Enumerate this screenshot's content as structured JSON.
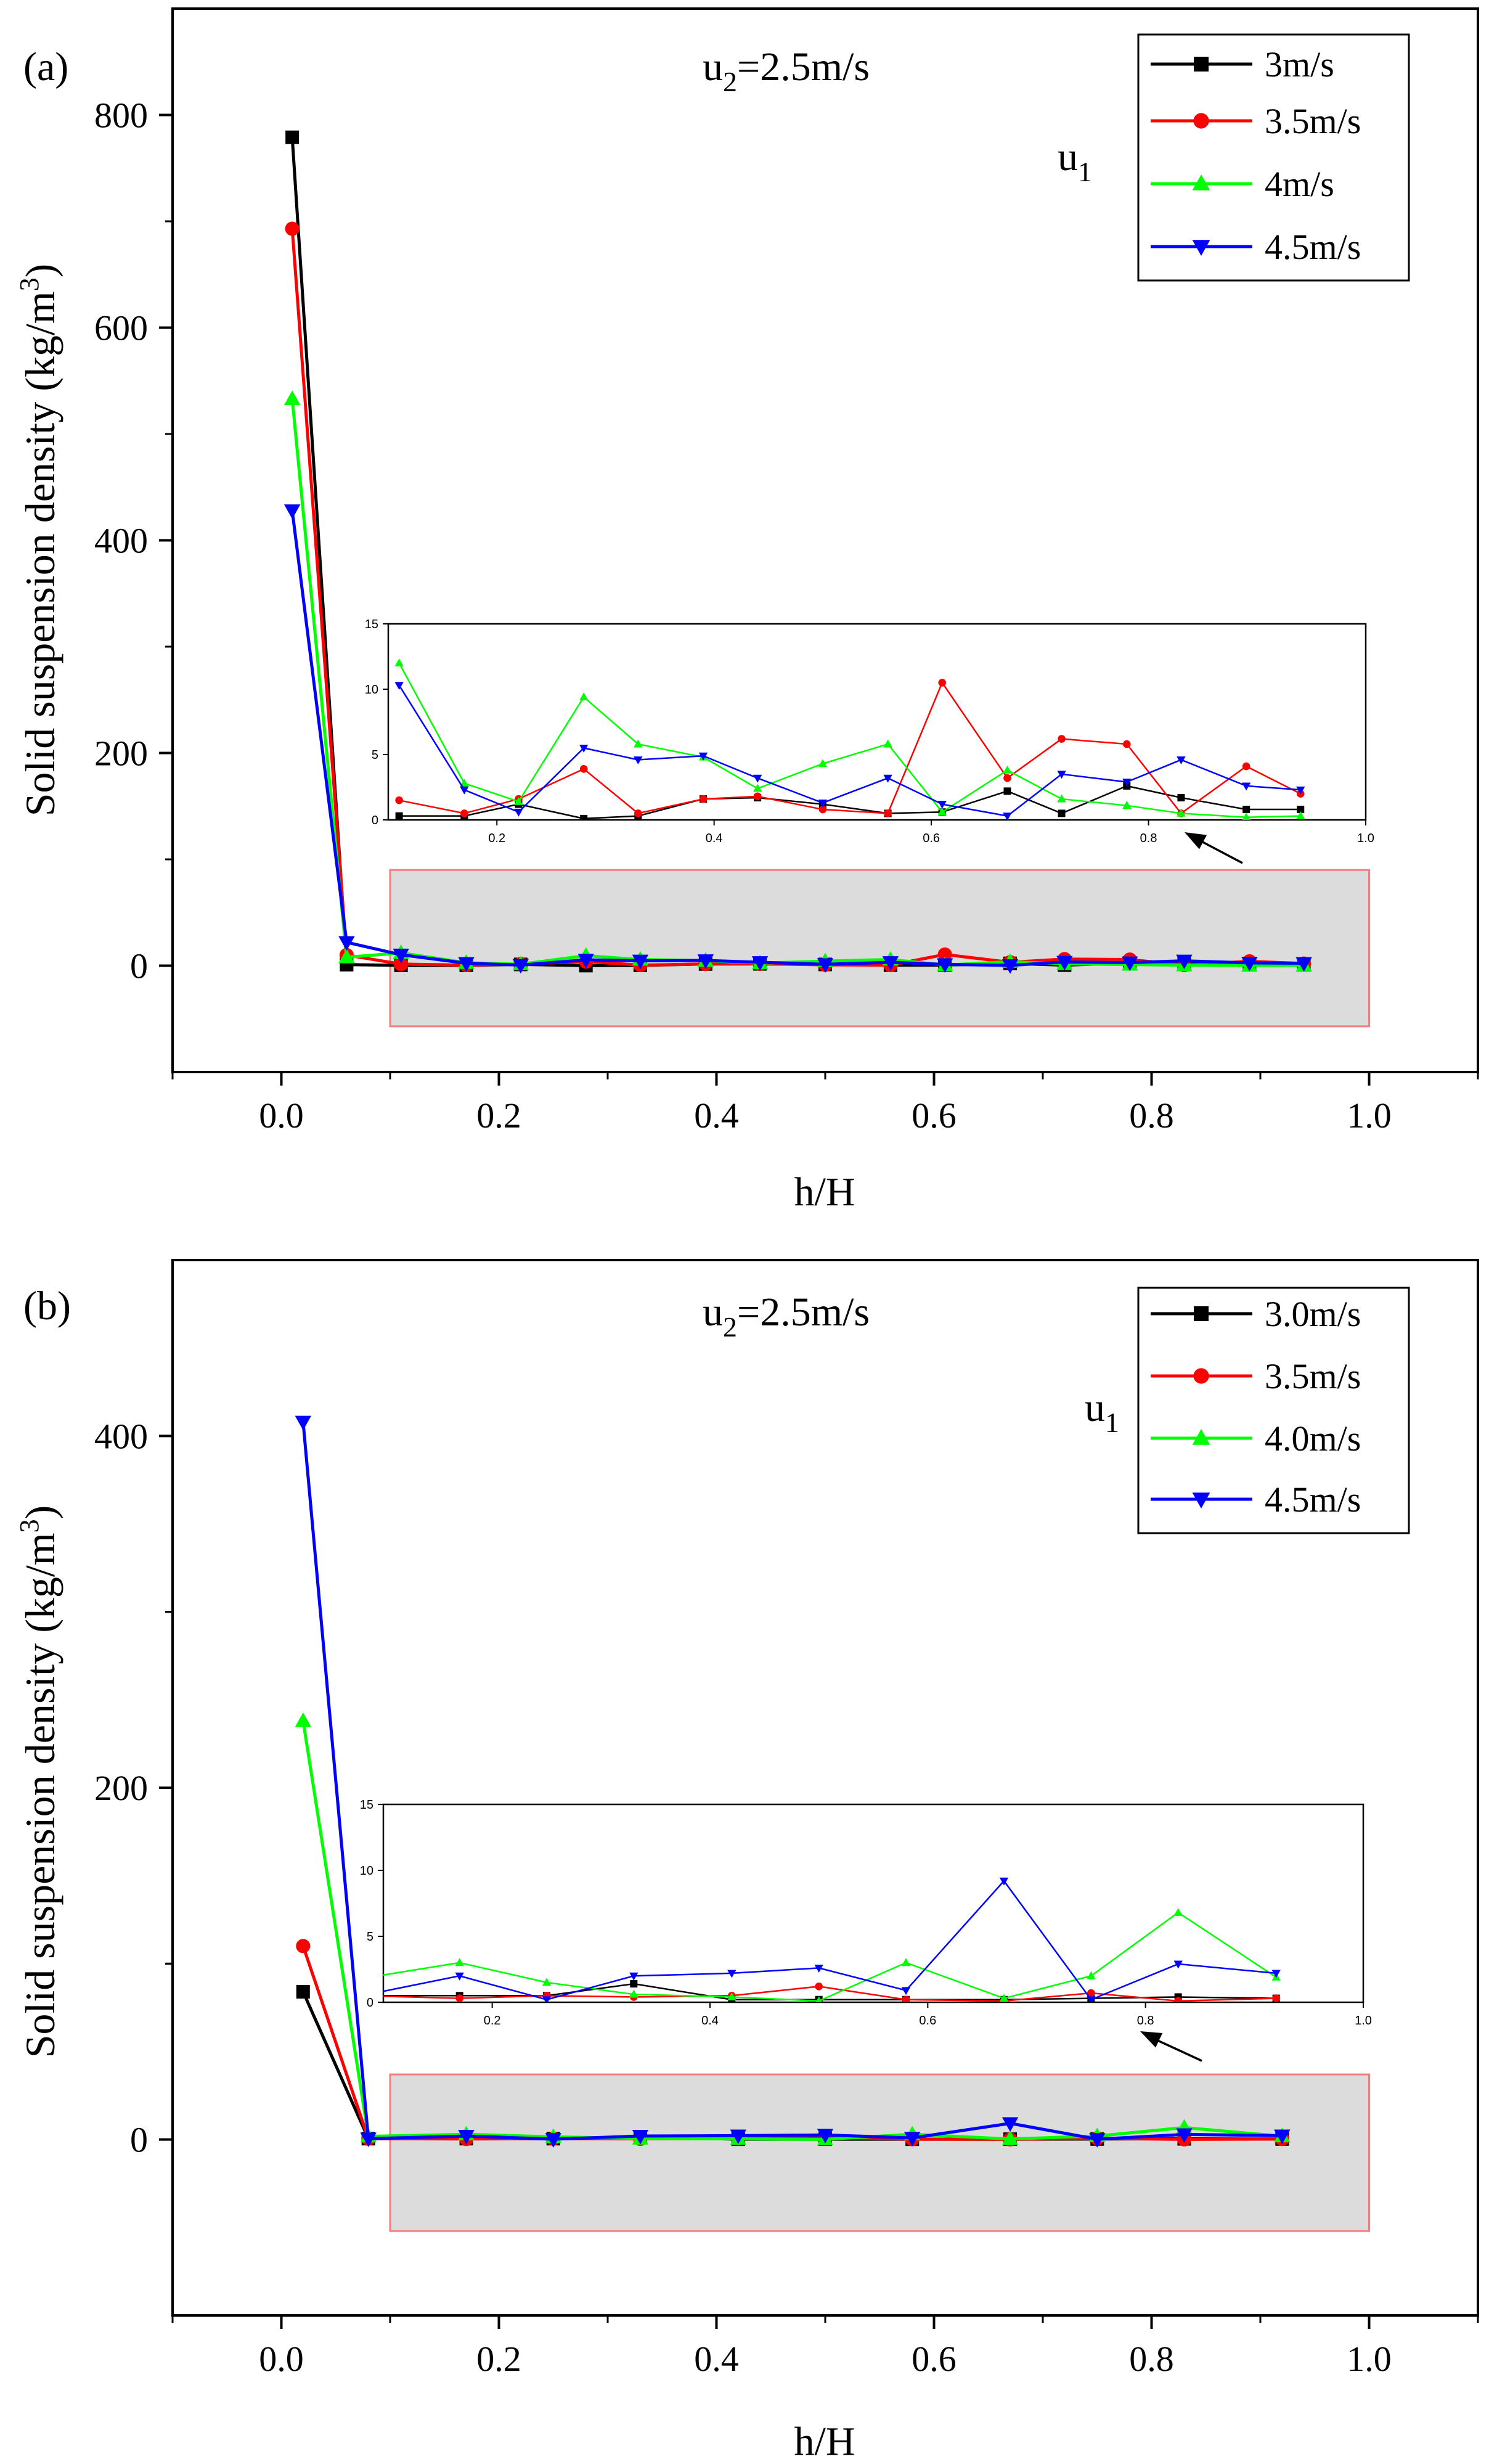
{
  "figure": "Solid suspension density versus h/H",
  "chart_data": [
    {
      "id": "a",
      "type": "line",
      "panel_label": "(a)",
      "annotation": "u",
      "annotation_sub": "2",
      "annotation_rest": "=2.5m/s",
      "legend_group_label": "u",
      "legend_group_sub": "1",
      "xlabel": "h/H",
      "ylabel_main": "Solid suspension density (kg/m",
      "ylabel_sup": "3",
      "ylabel_end": ")",
      "xlim": [
        -0.1,
        1.1
      ],
      "ylim": [
        -100,
        900
      ],
      "xticks": [
        0.0,
        0.2,
        0.4,
        0.6,
        0.8,
        1.0
      ],
      "xtick_labels": [
        "0.0",
        "0.2",
        "0.4",
        "0.6",
        "0.8",
        "1.0"
      ],
      "yticks": [
        0,
        200,
        400,
        600,
        800
      ],
      "ytick_labels": [
        "0",
        "200",
        "400",
        "600",
        "800"
      ],
      "highlight_region": {
        "x": [
          0.1,
          1.0
        ],
        "y": [
          -57,
          90
        ]
      },
      "x": [
        0.01,
        0.06,
        0.11,
        0.17,
        0.22,
        0.28,
        0.33,
        0.39,
        0.44,
        0.5,
        0.56,
        0.61,
        0.67,
        0.72,
        0.78,
        0.83,
        0.89,
        0.94
      ],
      "series": [
        {
          "name": "3m/s",
          "color": "#000000",
          "marker": "square",
          "values": [
            779,
            1,
            0.3,
            0.3,
            1.2,
            0.1,
            0.3,
            1.6,
            1.7,
            1.2,
            0.5,
            0.6,
            2.2,
            0.5,
            2.6,
            1.7,
            0.8,
            0.8
          ]
        },
        {
          "name": "3.5m/s",
          "color": "#ff0000",
          "marker": "circle",
          "values": [
            693,
            10,
            1.5,
            0.5,
            1.6,
            3.9,
            0.5,
            1.6,
            1.8,
            0.8,
            0.5,
            10.5,
            3.2,
            6.2,
            5.8,
            0.5,
            4.1,
            2.0
          ]
        },
        {
          "name": "4m/s",
          "color": "#00ff00",
          "marker": "triangle-up",
          "values": [
            533,
            8,
            12,
            2.8,
            1.4,
            9.4,
            5.8,
            4.8,
            2.4,
            4.3,
            5.8,
            0.6,
            3.8,
            1.6,
            1.1,
            0.5,
            0.2,
            0.3
          ]
        },
        {
          "name": "4.5m/s",
          "color": "#0000ff",
          "marker": "triangle-down",
          "values": [
            428,
            22,
            10.3,
            2.3,
            0.6,
            5.5,
            4.6,
            4.9,
            3.2,
            1.3,
            3.2,
            1.2,
            0.3,
            3.5,
            2.9,
            4.6,
            2.6,
            2.3
          ]
        }
      ],
      "inset": {
        "xlim": [
          0.1,
          1.0
        ],
        "ylim": [
          0,
          15
        ],
        "xticks": [
          0.2,
          0.4,
          0.6,
          0.8,
          1.0
        ],
        "xtick_labels": [
          "0.2",
          "0.4",
          "0.6",
          "0.8",
          "1.0"
        ],
        "yticks": [
          0,
          5,
          10,
          15
        ],
        "ytick_labels": [
          "0",
          "5",
          "10",
          "15"
        ],
        "x_start_index": 2
      }
    },
    {
      "id": "b",
      "type": "line",
      "panel_label": "(b)",
      "annotation": "u",
      "annotation_sub": "2",
      "annotation_rest": "=2.5m/s",
      "legend_group_label": "u",
      "legend_group_sub": "1",
      "xlabel": "h/H",
      "ylabel_main": "Solid suspension density (kg/m",
      "ylabel_sup": "3",
      "ylabel_end": ")",
      "xlim": [
        -0.1,
        1.1
      ],
      "ylim": [
        -100,
        500
      ],
      "xticks": [
        0.0,
        0.2,
        0.4,
        0.6,
        0.8,
        1.0
      ],
      "xtick_labels": [
        "0.0",
        "0.2",
        "0.4",
        "0.6",
        "0.8",
        "1.0"
      ],
      "yticks": [
        0,
        200,
        400
      ],
      "ytick_labels": [
        "0",
        "200",
        "400"
      ],
      "highlight_region": {
        "x": [
          0.1,
          1.0
        ],
        "y": [
          -52,
          37
        ]
      },
      "x": [
        0.02,
        0.08,
        0.17,
        0.25,
        0.33,
        0.42,
        0.5,
        0.58,
        0.67,
        0.75,
        0.83,
        0.92
      ],
      "series": [
        {
          "name": "3.0m/s",
          "color": "#000000",
          "marker": "square",
          "values": [
            84,
            0.5,
            0.5,
            0.5,
            1.4,
            0.2,
            0.2,
            0.2,
            0.2,
            0.3,
            0.4,
            0.3
          ]
        },
        {
          "name": "3.5m/s",
          "color": "#ff0000",
          "marker": "circle",
          "values": [
            110,
            0.5,
            0.3,
            0.5,
            0.4,
            0.5,
            1.2,
            0.2,
            0.1,
            0.7,
            0.1,
            0.3
          ]
        },
        {
          "name": "4.0m/s",
          "color": "#00ff00",
          "marker": "triangle-up",
          "values": [
            238,
            1.8,
            3.0,
            1.5,
            0.6,
            0.4,
            0.1,
            3.0,
            0.3,
            2.0,
            6.8,
            1.9
          ]
        },
        {
          "name": "4.5m/s",
          "color": "#0000ff",
          "marker": "triangle-down",
          "values": [
            408,
            0.5,
            2.0,
            0.2,
            2.0,
            2.2,
            2.6,
            0.9,
            9.2,
            0.2,
            2.9,
            2.2
          ]
        }
      ],
      "inset": {
        "xlim": [
          0.1,
          1.0
        ],
        "ylim": [
          0,
          15
        ],
        "xticks": [
          0.2,
          0.4,
          0.6,
          0.8,
          1.0
        ],
        "xtick_labels": [
          "0.2",
          "0.4",
          "0.6",
          "0.8",
          "1.0"
        ],
        "yticks": [
          0,
          5,
          10,
          15
        ],
        "ytick_labels": [
          "0",
          "5",
          "10",
          "15"
        ],
        "x_start_index": 1
      }
    }
  ]
}
